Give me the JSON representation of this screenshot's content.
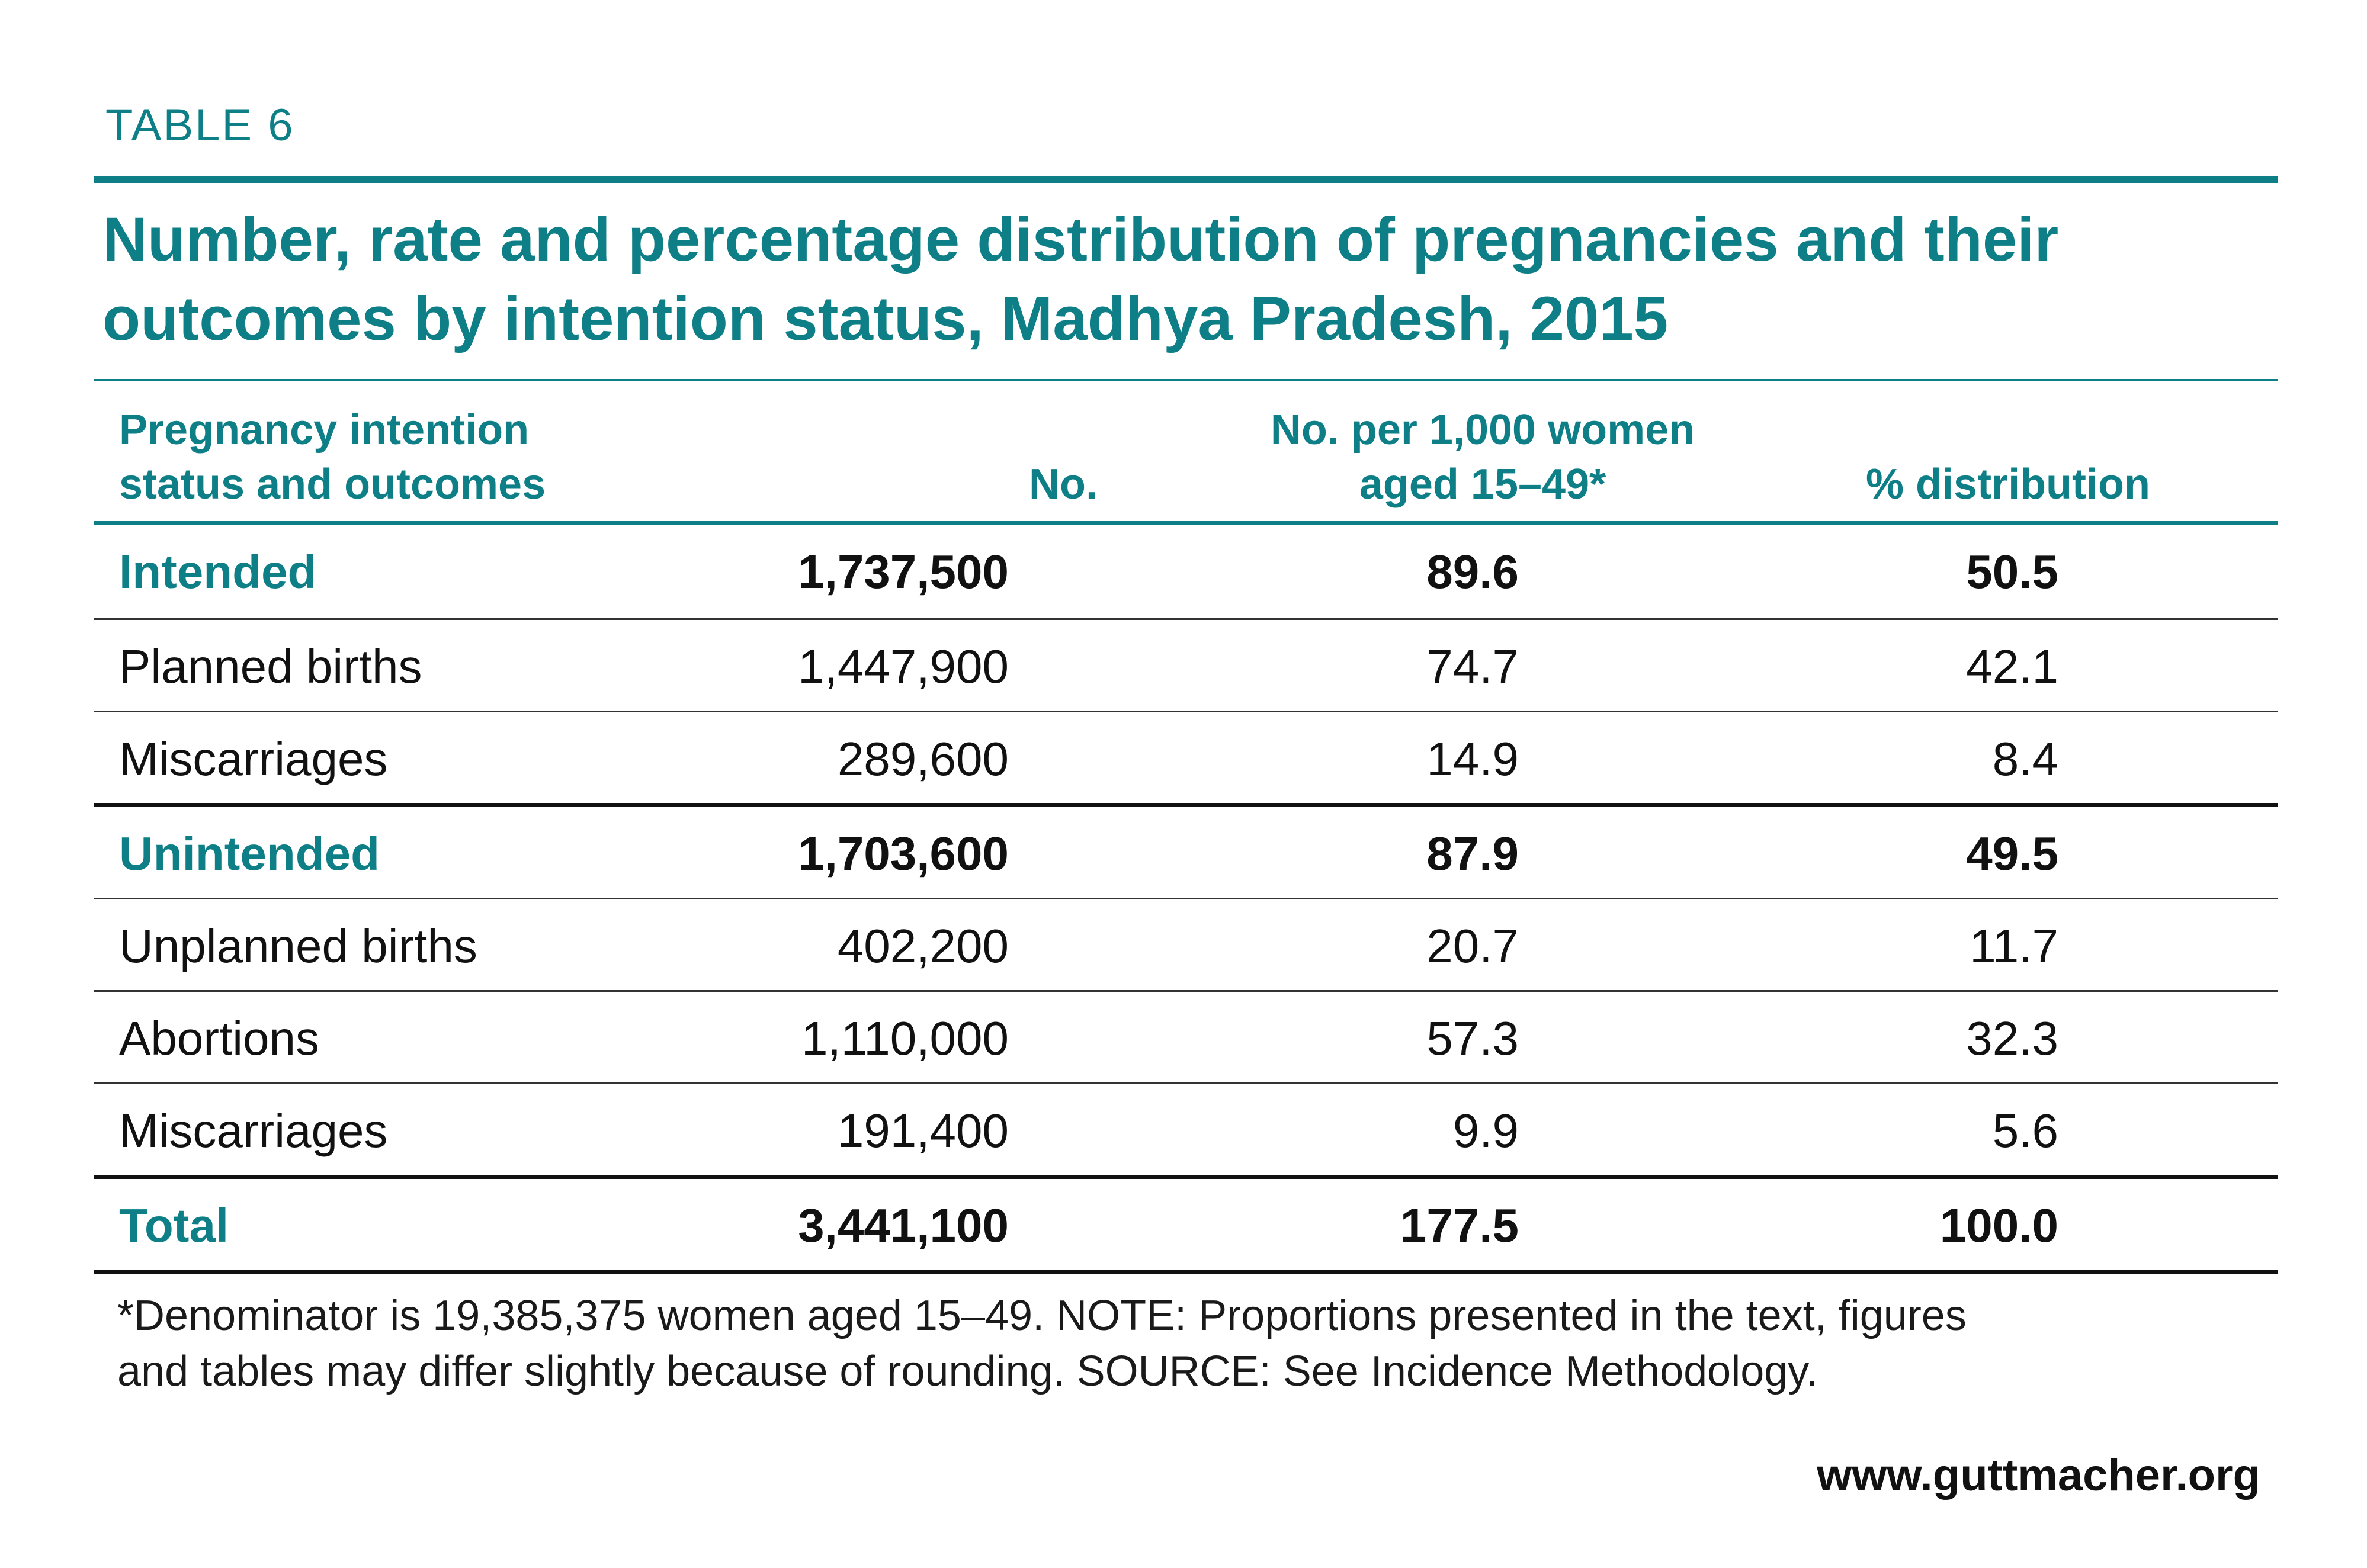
{
  "table_label": "TABLE 6",
  "title": "Number, rate and percentage distribution of pregnancies and their outcomes by intention status, Madhya Pradesh, 2015",
  "columns": {
    "category_line1": "Pregnancy intention",
    "category_line2": "status and outcomes",
    "number": "No.",
    "rate_line1": "No. per 1,000 women",
    "rate_line2": "aged 15–49*",
    "pct": "% distribution"
  },
  "rows": [
    {
      "label": "Intended",
      "number": "1,737,500",
      "rate": "89.6",
      "pct": "50.5"
    },
    {
      "label": "Planned births",
      "number": "1,447,900",
      "rate": "74.7",
      "pct": "42.1"
    },
    {
      "label": "Miscarriages",
      "number": "289,600",
      "rate": "14.9",
      "pct": "8.4"
    },
    {
      "label": "Unintended",
      "number": "1,703,600",
      "rate": "87.9",
      "pct": "49.5"
    },
    {
      "label": "Unplanned births",
      "number": "402,200",
      "rate": "20.7",
      "pct": "11.7"
    },
    {
      "label": "Abortions",
      "number": "1,110,000",
      "rate": "57.3",
      "pct": "32.3"
    },
    {
      "label": "Miscarriages",
      "number": "191,400",
      "rate": "9.9",
      "pct": "5.6"
    },
    {
      "label": "Total",
      "number": "3,441,100",
      "rate": "177.5",
      "pct": "100.0"
    }
  ],
  "footnote_line1": "*Denominator is 19,385,375 women aged 15–49. NOTE: Proportions presented in the text, figures",
  "footnote_line2": "and tables may differ slightly because of rounding.  SOURCE: See Incidence Methodology.",
  "website": "www.guttmacher.org",
  "colors": {
    "accent": "#0e7f86",
    "text": "#111111"
  },
  "chart_data": {
    "type": "table",
    "title": "Number, rate and percentage distribution of pregnancies and their outcomes by intention status, Madhya Pradesh, 2015",
    "columns": [
      "Pregnancy intention status and outcomes",
      "No.",
      "No. per 1,000 women aged 15–49*",
      "% distribution"
    ],
    "rows": [
      [
        "Intended",
        1737500,
        89.6,
        50.5
      ],
      [
        "Planned births",
        1447900,
        74.7,
        42.1
      ],
      [
        "Miscarriages",
        289600,
        14.9,
        8.4
      ],
      [
        "Unintended",
        1703600,
        87.9,
        49.5
      ],
      [
        "Unplanned births",
        402200,
        20.7,
        11.7
      ],
      [
        "Abortions",
        1110000,
        57.3,
        32.3
      ],
      [
        "Miscarriages",
        191400,
        9.9,
        5.6
      ],
      [
        "Total",
        3441100,
        177.5,
        100.0
      ]
    ]
  }
}
